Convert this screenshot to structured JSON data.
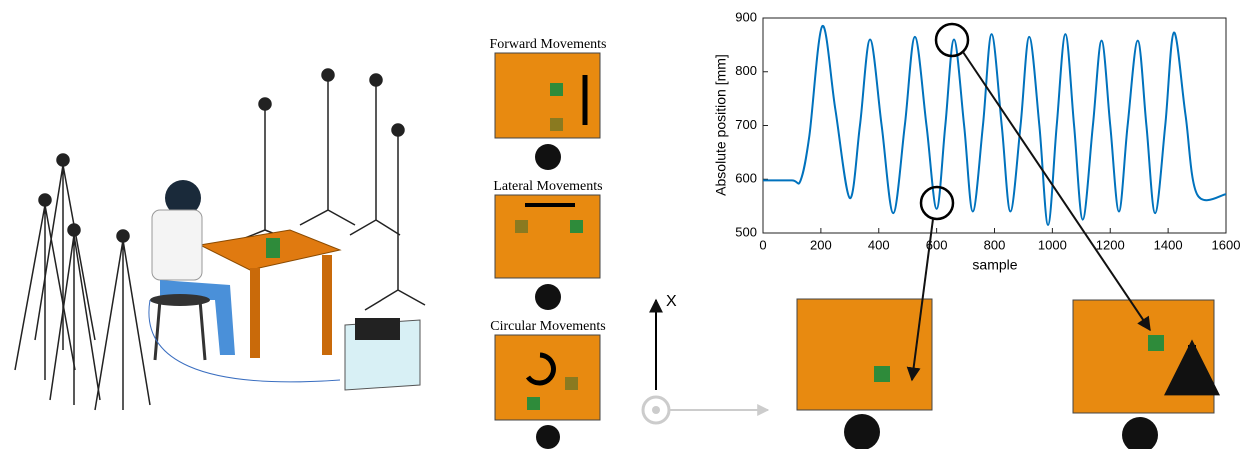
{
  "chart_data": {
    "type": "line",
    "xlabel": "sample",
    "ylabel": "Absolute position [mm]",
    "xlim": [
      0,
      1600
    ],
    "ylim": [
      500,
      900
    ],
    "xticks": [
      0,
      200,
      400,
      600,
      800,
      1000,
      1200,
      1400,
      1600
    ],
    "yticks": [
      500,
      600,
      700,
      800,
      900
    ],
    "series": [
      {
        "color": "#0072bd",
        "x": [
          0,
          100,
          130,
          160,
          205,
          250,
          300,
          335,
          370,
          410,
          450,
          490,
          525,
          565,
          600,
          630,
          660,
          695,
          725,
          760,
          790,
          825,
          855,
          890,
          920,
          955,
          985,
          1015,
          1045,
          1075,
          1105,
          1140,
          1170,
          1200,
          1230,
          1260,
          1295,
          1325,
          1355,
          1390,
          1420,
          1460,
          1500,
          1600
        ],
        "values": [
          598,
          598,
          598,
          680,
          885,
          730,
          565,
          700,
          860,
          700,
          537,
          700,
          865,
          700,
          545,
          700,
          860,
          700,
          540,
          700,
          870,
          700,
          540,
          700,
          865,
          700,
          515,
          700,
          870,
          700,
          525,
          700,
          858,
          700,
          540,
          700,
          858,
          700,
          537,
          700,
          873,
          720,
          572,
          572
        ]
      }
    ]
  },
  "figure": {
    "panels": [
      "Forward Movements",
      "Lateral Movements",
      "Circular Movements"
    ],
    "axis_label": "X"
  }
}
